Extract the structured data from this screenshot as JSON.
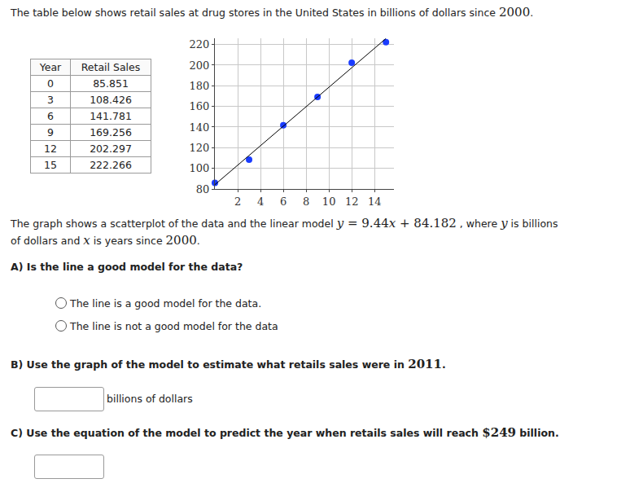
{
  "intro": [
    "The table below shows retail sales at drug stores in the United States in billions of dollars since ",
    {
      "math": "2000"
    },
    "."
  ],
  "table": {
    "header": [
      "Year",
      "Retail Sales"
    ],
    "rows": [
      [
        0,
        85.851
      ],
      [
        3,
        108.426
      ],
      [
        6,
        141.781
      ],
      [
        9,
        169.256
      ],
      [
        12,
        202.297
      ],
      [
        15,
        222.266
      ]
    ]
  },
  "chart_data": {
    "type": "scatter",
    "x": [
      0,
      3,
      6,
      9,
      12,
      15
    ],
    "series": [
      {
        "type": "scatter",
        "color": "#1a3cff",
        "marker": "circle",
        "values": [
          85.851,
          108.426,
          141.781,
          169.256,
          202.297,
          222.266
        ]
      },
      {
        "type": "line",
        "color": "#000000",
        "line_style": "solid",
        "x": [
          0,
          15
        ],
        "values": [
          84.182,
          225.782
        ]
      }
    ],
    "xlim": [
      0,
      15.7
    ],
    "ylim": [
      80,
      226
    ],
    "xticks": [
      2,
      4,
      6,
      8,
      10,
      12,
      14
    ],
    "yticks": [
      80,
      100,
      120,
      140,
      160,
      180,
      200,
      220
    ],
    "grid": true
  },
  "description": [
    "The graph shows a scatterplot of the data and the linear model ",
    {
      "math": "y = 9.44x + 84.182"
    },
    " , where ",
    {
      "math": "y"
    },
    " is billions of dollars and ",
    {
      "math": "x"
    },
    " is years since ",
    {
      "math": "2000"
    },
    "."
  ],
  "questions": [
    {
      "label": "A) Is the line a good model for the data?",
      "options": [
        "The line is a good model for the data.",
        "The line is not a good model for the data"
      ]
    },
    {
      "label": [
        "B) Use the graph of the model to estimate what retails sales were in ",
        {
          "math": "2011"
        },
        "."
      ],
      "unit": "billions of dollars"
    },
    {
      "label": [
        "C) Use the equation of the model to predict the year when retails sales will reach ",
        {
          "math": "$249"
        },
        " billion."
      ]
    }
  ]
}
